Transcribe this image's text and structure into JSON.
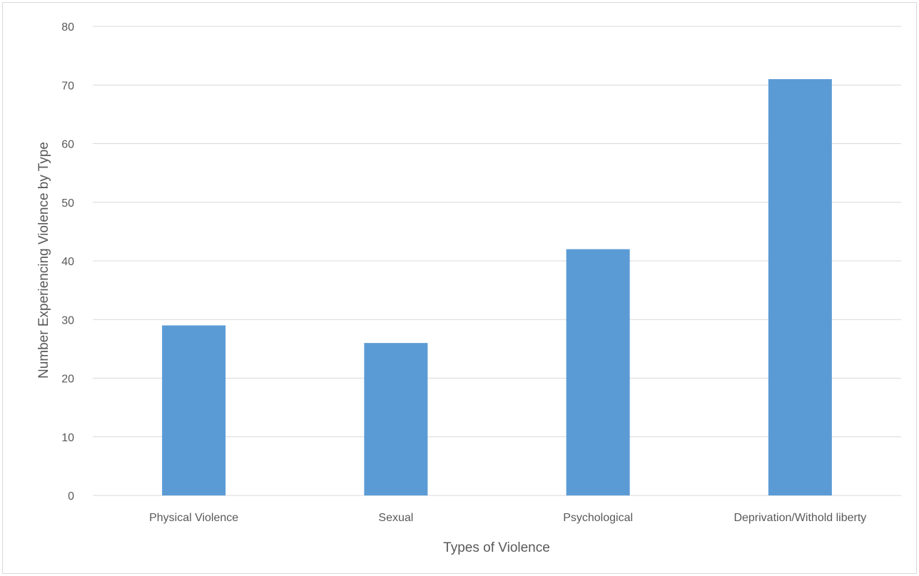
{
  "chart_data": {
    "type": "bar",
    "title": "",
    "xlabel": "Types of Violence",
    "ylabel": "Number Experiencing Violence by Type",
    "categories": [
      "Physical Violence",
      "Sexual",
      "Psychological",
      "Deprivation/Withold liberty"
    ],
    "values": [
      29,
      26,
      42,
      71
    ],
    "ylim": [
      0,
      80
    ],
    "yticks": [
      0,
      10,
      20,
      30,
      40,
      50,
      60,
      70,
      80
    ],
    "grid": true,
    "legend": "none",
    "bar_color": "#5b9bd5",
    "grid_color": "#d9d9d9",
    "text_color": "#595959"
  }
}
